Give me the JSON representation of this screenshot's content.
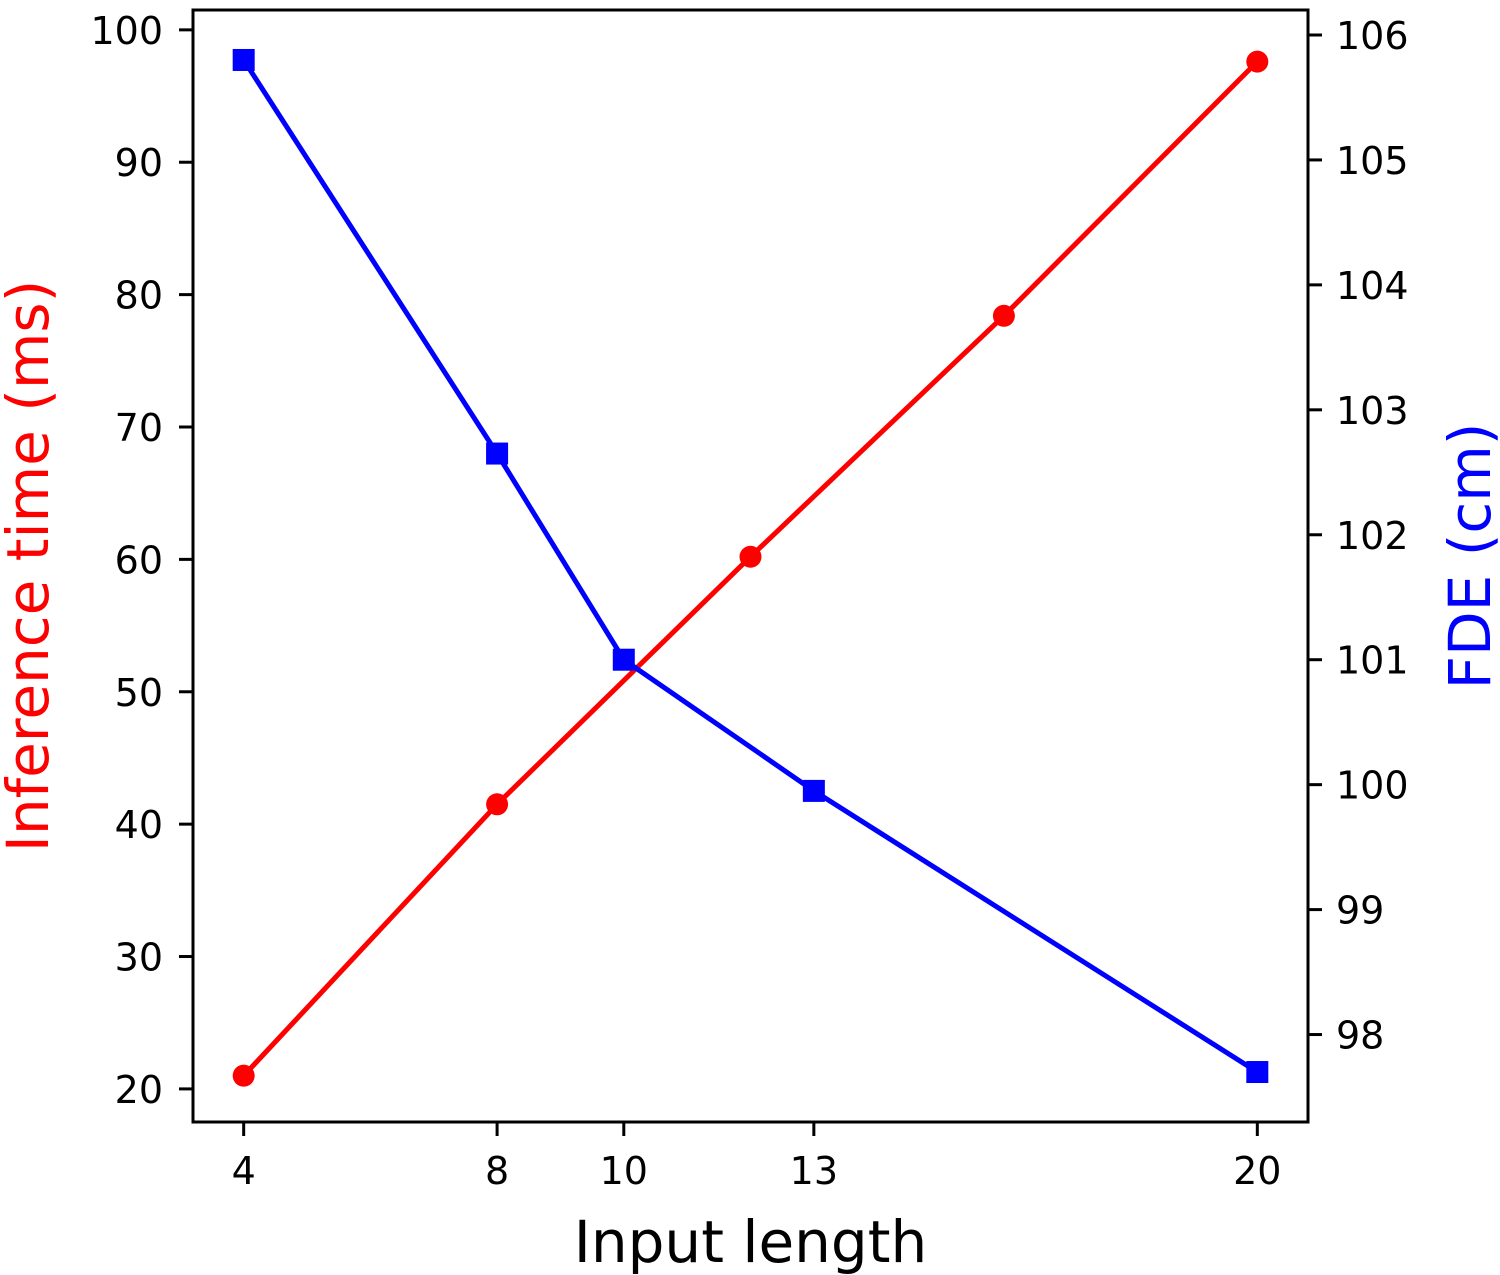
{
  "chart_data": {
    "type": "line",
    "xlabel": "Input length",
    "x_ticks": [
      4,
      8,
      10,
      13,
      20
    ],
    "xlim": [
      3.2,
      20.8
    ],
    "left_axis": {
      "label": "Inference time (ms)",
      "color": "#ff0000",
      "ylim": [
        17.5,
        101.5
      ],
      "ticks": [
        20,
        30,
        40,
        50,
        60,
        70,
        80,
        90,
        100
      ]
    },
    "right_axis": {
      "label": "FDE (cm)",
      "color": "#0000ff",
      "ylim": [
        97.3,
        106.2
      ],
      "ticks": [
        98,
        99,
        100,
        101,
        102,
        103,
        104,
        105,
        106
      ]
    },
    "series": [
      {
        "axis": "left",
        "color": "#ff0000",
        "marker": "circle",
        "x": [
          4,
          8,
          12,
          16,
          20
        ],
        "y": [
          21.0,
          41.5,
          60.2,
          78.4,
          97.6
        ]
      },
      {
        "axis": "right",
        "color": "#0000ff",
        "marker": "square",
        "x": [
          4,
          8,
          10,
          13,
          20
        ],
        "y": [
          105.8,
          102.65,
          101.0,
          99.95,
          97.7
        ]
      }
    ]
  }
}
